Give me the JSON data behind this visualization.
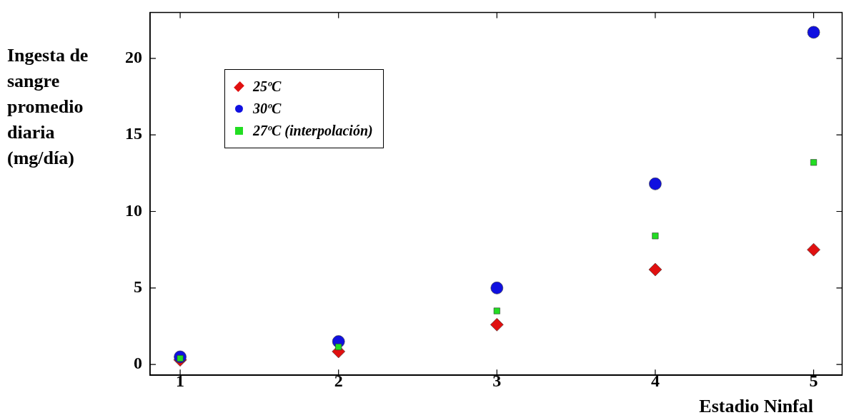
{
  "chart_data": {
    "type": "scatter",
    "xlabel": "Estadio Ninfal",
    "ylabel": "Ingesta de sangre promedio diaria (mg/día)",
    "x": [
      1,
      2,
      3,
      4,
      5
    ],
    "series": [
      {
        "name": "25ºC",
        "color": "#e01010",
        "marker": "diamond",
        "values": [
          0.3,
          0.85,
          2.6,
          6.2,
          7.5
        ]
      },
      {
        "name": "30ºC",
        "color": "#1010e0",
        "marker": "circle",
        "values": [
          0.5,
          1.5,
          5.0,
          11.8,
          21.7
        ]
      },
      {
        "name": "27ºC (interpolación)",
        "color": "#22dd22",
        "marker": "square",
        "values": [
          0.4,
          1.15,
          3.5,
          8.4,
          13.2
        ]
      }
    ],
    "xlim": [
      0.81,
      5.18
    ],
    "xticks": [
      1,
      2,
      3,
      4,
      5
    ],
    "ylim": [
      -0.7,
      23
    ],
    "yticks": [
      0,
      5,
      10,
      15,
      20
    ],
    "grid": false,
    "legend": "top left"
  }
}
